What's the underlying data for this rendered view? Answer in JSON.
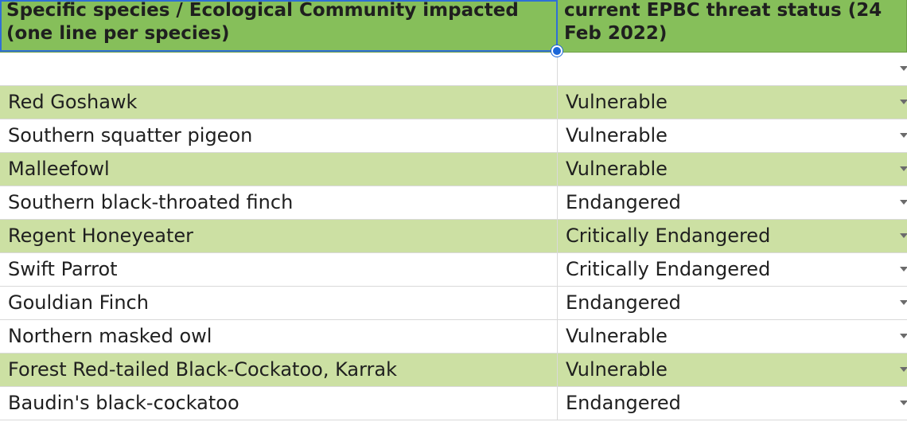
{
  "header": {
    "col_a": "Specific species / Ecological Community impacted (one line per species)",
    "col_b": "current EPBC threat status (24 Feb 2022)"
  },
  "rows": [
    {
      "species": "",
      "status": "",
      "highlight": false
    },
    {
      "species": "Red Goshawk",
      "status": "Vulnerable",
      "highlight": true
    },
    {
      "species": "Southern squatter pigeon",
      "status": "Vulnerable",
      "highlight": false
    },
    {
      "species": "Malleefowl",
      "status": "Vulnerable",
      "highlight": true
    },
    {
      "species": "Southern black-throated finch",
      "status": "Endangered",
      "highlight": false
    },
    {
      "species": "Regent Honeyeater",
      "status": "Critically Endangered",
      "highlight": true
    },
    {
      "species": "Swift Parrot",
      "status": "Critically Endangered",
      "highlight": false
    },
    {
      "species": "Gouldian Finch",
      "status": "Endangered",
      "highlight": false
    },
    {
      "species": "Northern masked owl",
      "status": "Vulnerable",
      "highlight": false
    },
    {
      "species": "Forest Red-tailed Black-Cockatoo, Karrak",
      "status": "Vulnerable",
      "highlight": true
    },
    {
      "species": "Baudin's black-cockatoo",
      "status": "Endangered",
      "highlight": false
    }
  ],
  "colors": {
    "header_bg": "#86bf5a",
    "highlight_row_bg": "#cce0a3",
    "selection": "#1a66d9"
  },
  "icons": {
    "dropdown": "chevron-down-icon",
    "selection_handle": "fill-handle-icon"
  }
}
